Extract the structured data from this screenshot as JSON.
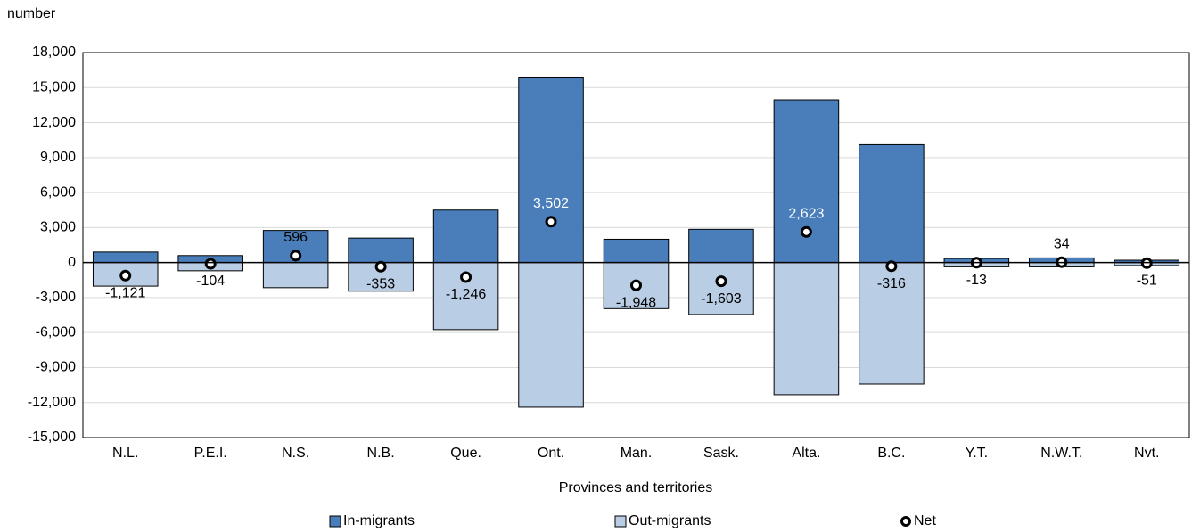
{
  "chart_data": {
    "type": "bar",
    "y_label": "number",
    "x_label": "Provinces and territories",
    "categories": [
      "N.L.",
      "P.E.I.",
      "N.S.",
      "N.B.",
      "Que.",
      "Ont.",
      "Man.",
      "Sask.",
      "Alta.",
      "B.C.",
      "Y.T.",
      "N.W.T.",
      "Nvt."
    ],
    "series": [
      {
        "name": "In-migrants",
        "color": "#4a7ebb",
        "mark": "bar",
        "values": [
          900,
          600,
          2750,
          2100,
          4500,
          15900,
          2000,
          2850,
          13950,
          10100,
          350,
          400,
          200
        ]
      },
      {
        "name": "Out-migrants",
        "color": "#b9cde5",
        "mark": "bar",
        "values": [
          -2021,
          -704,
          -2154,
          -2453,
          -5746,
          -12398,
          -3948,
          -4453,
          -11327,
          -10416,
          -363,
          -366,
          -251
        ]
      },
      {
        "name": "Net",
        "color": "#ffffff",
        "mark": "marker",
        "values": [
          -1121,
          -104,
          596,
          -353,
          -1246,
          3502,
          -1948,
          -1603,
          2623,
          -316,
          -13,
          34,
          -51
        ],
        "value_labels": [
          "-1,121",
          "-104",
          "596",
          "-353",
          "-1,246",
          "3,502",
          "-1,948",
          "-1,603",
          "2,623",
          "-316",
          "-13",
          "34",
          "-51"
        ]
      }
    ],
    "ylim": [
      -15000,
      18000
    ],
    "yticks": [
      {
        "value": -15000,
        "label": "-15,000"
      },
      {
        "value": -12000,
        "label": "-12,000"
      },
      {
        "value": -9000,
        "label": "-9,000"
      },
      {
        "value": -6000,
        "label": "-6,000"
      },
      {
        "value": -3000,
        "label": "-3,000"
      },
      0,
      {
        "value": 3000,
        "label": "3,000"
      },
      {
        "value": 6000,
        "label": "6,000"
      },
      {
        "value": 9000,
        "label": "9,000"
      },
      {
        "value": 12000,
        "label": "12,000"
      },
      {
        "value": 15000,
        "label": "15,000"
      },
      {
        "value": 18000,
        "label": "18,000"
      }
    ],
    "grid": true
  }
}
